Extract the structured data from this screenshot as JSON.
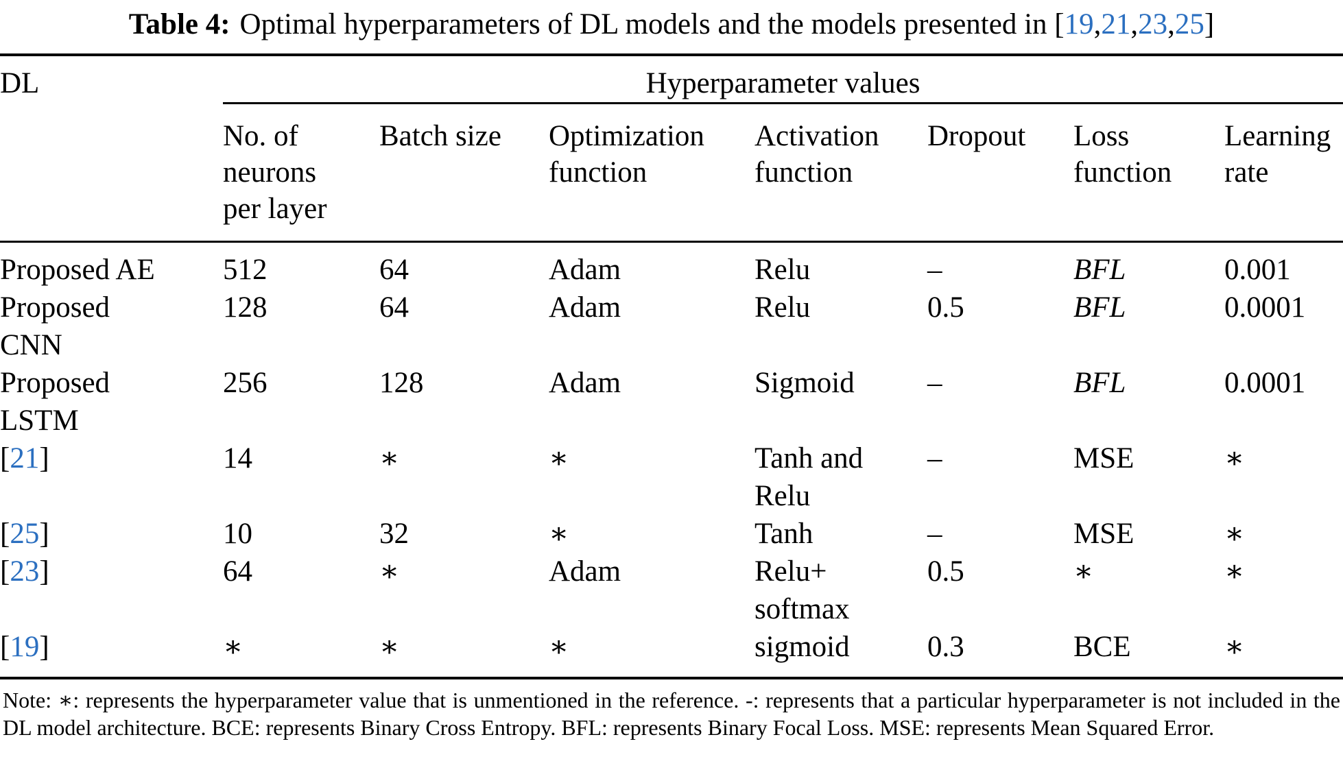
{
  "title": {
    "label": "Table 4:",
    "text": "Optimal hyperparameters of DL models and the models presented in ",
    "citations": [
      "19",
      "21",
      "23",
      "25"
    ]
  },
  "table": {
    "dl_header": "DL",
    "group_header": "Hyperparameter values",
    "columns": [
      "No. of\nneurons\nper layer",
      "Batch size",
      "Optimization\nfunction",
      "Activation\nfunction",
      "Dropout",
      "Loss\nfunction",
      "Learning\nrate"
    ],
    "rows": [
      {
        "model": "Proposed AE",
        "ref": null,
        "values": [
          "512",
          "64",
          "Adam",
          "Relu",
          "–",
          "BFL",
          "0.001"
        ]
      },
      {
        "model": "Proposed\nCNN",
        "ref": null,
        "values": [
          "128",
          "64",
          "Adam",
          "Relu",
          "0.5",
          "BFL",
          "0.0001"
        ]
      },
      {
        "model": "Proposed\nLSTM",
        "ref": null,
        "values": [
          "256",
          "128",
          "Adam",
          "Sigmoid",
          "–",
          "BFL",
          "0.0001"
        ]
      },
      {
        "model": null,
        "ref": "21",
        "values": [
          "14",
          "∗",
          "∗",
          "Tanh and\nRelu",
          "–",
          "MSE",
          "∗"
        ]
      },
      {
        "model": null,
        "ref": "25",
        "values": [
          "10",
          "32",
          "∗",
          "Tanh",
          "–",
          "MSE",
          "∗"
        ]
      },
      {
        "model": null,
        "ref": "23",
        "values": [
          "64",
          "∗",
          "Adam",
          "Relu+\nsoftmax",
          "0.5",
          "∗",
          "∗"
        ]
      },
      {
        "model": null,
        "ref": "19",
        "values": [
          "∗",
          "∗",
          "∗",
          "sigmoid",
          "0.3",
          "BCE",
          "∗"
        ]
      }
    ]
  },
  "styles": {
    "citation_color": "#2b6fc0",
    "italic_values": [
      "BFL"
    ]
  },
  "footnote": "Note: ∗: represents the hyperparameter value that is unmentioned in the reference. -: represents that a particular hyperparameter is not included in the DL model architecture. BCE: represents Binary Cross Entropy. BFL: represents Binary Focal Loss. MSE: represents Mean Squared Error."
}
